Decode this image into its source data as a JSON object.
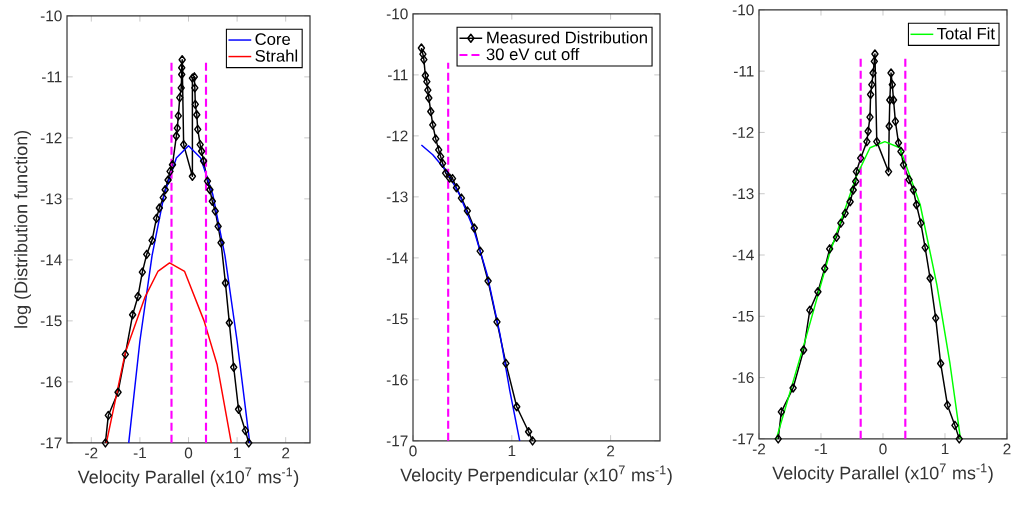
{
  "chart_data": [
    {
      "type": "line",
      "xlabel": "Velocity Parallel (x10$^{7}$ ms$^{-1}$)",
      "ylabel": "log (Distribution function)",
      "xlim": [
        -2.5,
        2.5
      ],
      "ylim": [
        -17,
        -10
      ],
      "xticks": [
        -2,
        -1,
        0,
        1,
        2
      ],
      "yticks": [
        -17,
        -16,
        -15,
        -14,
        -13,
        -12,
        -11,
        -10
      ],
      "legend": "top right",
      "series": [
        {
          "color": "#000000",
          "marker": "diamond",
          "x": [
            -1.71,
            -1.65,
            -1.45,
            -1.3,
            -1.15,
            -1.04,
            -0.95,
            -0.86,
            -0.75,
            -0.66,
            -0.6,
            -0.52,
            -0.48,
            -0.42,
            -0.38,
            -0.33,
            -0.25,
            -0.23,
            -0.21,
            -0.18,
            -0.15,
            -0.14,
            -0.14,
            -0.13,
            -0.1,
            0.08,
            0.08,
            0.12,
            0.13,
            0.14,
            0.17,
            0.19,
            0.24,
            0.27,
            0.31,
            0.39,
            0.44,
            0.49,
            0.55,
            0.61,
            0.67,
            0.76,
            0.84,
            0.93,
            1.03,
            1.17,
            1.24
          ],
          "values": [
            -17,
            -16.55,
            -16.17,
            -15.55,
            -14.9,
            -14.6,
            -14.2,
            -13.91,
            -13.68,
            -13.32,
            -13.15,
            -12.98,
            -12.85,
            -12.69,
            -12.55,
            -12.44,
            -11.97,
            -11.84,
            -11.64,
            -11.34,
            -11.18,
            -10.96,
            -10.85,
            -10.72,
            -12.11,
            -12.63,
            -11.02,
            -11.0,
            -11.18,
            -11.45,
            -11.62,
            -11.86,
            -12.11,
            -12.22,
            -12.38,
            -12.71,
            -12.85,
            -13.04,
            -13.2,
            -13.45,
            -13.72,
            -14.38,
            -15.03,
            -15.76,
            -16.45,
            -16.8,
            -17
          ]
        },
        {
          "name": "Core",
          "color": "#0000ff",
          "x": [
            -1.23,
            -1.0,
            -0.75,
            -0.5,
            -0.25,
            0,
            0.25,
            0.5,
            0.75,
            1.0,
            1.26
          ],
          "values": [
            -17,
            -15.33,
            -13.93,
            -12.93,
            -12.33,
            -12.13,
            -12.33,
            -12.93,
            -13.93,
            -15.33,
            -17
          ]
        },
        {
          "name": "Strahl",
          "color": "#ff0000",
          "x": [
            -1.69,
            -1.3,
            -0.9,
            -0.63,
            -0.39,
            -0.08,
            0.32,
            0.59,
            0.88
          ],
          "values": [
            -17,
            -15.52,
            -14.62,
            -14.19,
            -14.05,
            -14.19,
            -15.0,
            -15.72,
            -17
          ]
        },
        {
          "color": "#ff00ff",
          "line_style": "dashed",
          "x": [
            -0.35,
            -0.35
          ],
          "values": [
            -17,
            -10.77
          ]
        },
        {
          "color": "#ff00ff",
          "line_style": "dashed",
          "x": [
            0.36,
            0.36
          ],
          "values": [
            -17,
            -10.77
          ]
        }
      ]
    },
    {
      "type": "line",
      "xlabel": "Velocity Perpendicular (x10$^{7}$ ms$^{-1}$)",
      "xlim": [
        0,
        2.5
      ],
      "ylim": [
        -17,
        -10
      ],
      "xticks": [
        0,
        1,
        2
      ],
      "yticks": [
        -17,
        -16,
        -15,
        -14,
        -13,
        -12,
        -11,
        -10
      ],
      "legend": "top right",
      "series": [
        {
          "name": "Measured Distribution",
          "color": "#000000",
          "marker": "diamond",
          "x": [
            0.085,
            0.1,
            0.11,
            0.125,
            0.14,
            0.15,
            0.16,
            0.18,
            0.2,
            0.23,
            0.26,
            0.28,
            0.3,
            0.33,
            0.37,
            0.4,
            0.44,
            0.49,
            0.55,
            0.62,
            0.68,
            0.76,
            0.85,
            0.94,
            1.05,
            1.17,
            1.21
          ],
          "values": [
            -10.56,
            -10.66,
            -10.75,
            -11.01,
            -11.11,
            -11.25,
            -11.38,
            -11.6,
            -11.82,
            -12.05,
            -12.23,
            -12.34,
            -12.45,
            -12.61,
            -12.69,
            -12.7,
            -12.85,
            -13.02,
            -13.23,
            -13.51,
            -13.89,
            -14.38,
            -15.05,
            -15.73,
            -16.44,
            -16.85,
            -17
          ]
        },
        {
          "name": "30 eV cut off",
          "color": "#ff00ff",
          "line_style": "dashed",
          "x": [
            0.356,
            0.356
          ],
          "values": [
            -17,
            -10.8
          ]
        },
        {
          "color": "#0000ff",
          "x": [
            0.085,
            0.2,
            0.34,
            0.47,
            0.61,
            0.75,
            0.88,
            0.98,
            1.08
          ],
          "values": [
            -12.15,
            -12.31,
            -12.58,
            -12.96,
            -13.51,
            -14.27,
            -15.25,
            -16.18,
            -17
          ]
        }
      ]
    },
    {
      "type": "line",
      "xlabel": "Velocity Parallel (x10$^{7}$ ms$^{-1}$)",
      "xlim": [
        -2,
        2
      ],
      "ylim": [
        -17,
        -10
      ],
      "xticks": [
        -2,
        -1,
        0,
        1,
        2
      ],
      "yticks": [
        -17,
        -16,
        -15,
        -14,
        -13,
        -12,
        -11,
        -10
      ],
      "legend": "top right",
      "series": [
        {
          "color": "#000000",
          "marker": "diamond",
          "x": [
            -1.69,
            -1.64,
            -1.45,
            -1.28,
            -1.18,
            -1.05,
            -0.94,
            -0.86,
            -0.75,
            -0.68,
            -0.61,
            -0.53,
            -0.48,
            -0.44,
            -0.43,
            -0.36,
            -0.26,
            -0.24,
            -0.21,
            -0.2,
            -0.18,
            -0.16,
            -0.14,
            -0.13,
            -0.1,
            0.09,
            0.1,
            0.11,
            0.13,
            0.15,
            0.17,
            0.2,
            0.25,
            0.29,
            0.33,
            0.42,
            0.49,
            0.54,
            0.61,
            0.68,
            0.76,
            0.85,
            0.93,
            1.04,
            1.16,
            1.23
          ],
          "values": [
            -17,
            -16.56,
            -16.17,
            -15.55,
            -14.9,
            -14.6,
            -14.22,
            -13.9,
            -13.71,
            -13.48,
            -13.32,
            -13.13,
            -12.94,
            -12.8,
            -12.64,
            -12.42,
            -12.15,
            -11.98,
            -11.75,
            -11.38,
            -11.22,
            -11.03,
            -10.84,
            -10.72,
            -12.15,
            -12.64,
            -11.9,
            -11.47,
            -11.03,
            -11.22,
            -11.47,
            -11.82,
            -12.17,
            -12.31,
            -12.53,
            -12.77,
            -12.94,
            -13.18,
            -13.48,
            -13.88,
            -14.38,
            -15.03,
            -15.77,
            -16.45,
            -16.78,
            -17
          ]
        },
        {
          "color": "#ff00ff",
          "line_style": "dashed",
          "x": [
            -0.36,
            -0.36
          ],
          "values": [
            -17,
            -10.78
          ]
        },
        {
          "color": "#ff00ff",
          "line_style": "dashed",
          "x": [
            0.36,
            0.36
          ],
          "values": [
            -17,
            -10.78
          ]
        },
        {
          "name": "Total Fit",
          "color": "#00ff00",
          "x": [
            -1.72,
            -1.26,
            -0.86,
            -0.43,
            -0.21,
            0.03,
            0.27,
            0.6,
            0.87,
            1.08,
            1.25
          ],
          "values": [
            -17,
            -15.41,
            -13.97,
            -12.72,
            -12.25,
            -12.15,
            -12.25,
            -13.18,
            -14.49,
            -15.77,
            -17
          ]
        }
      ]
    }
  ]
}
